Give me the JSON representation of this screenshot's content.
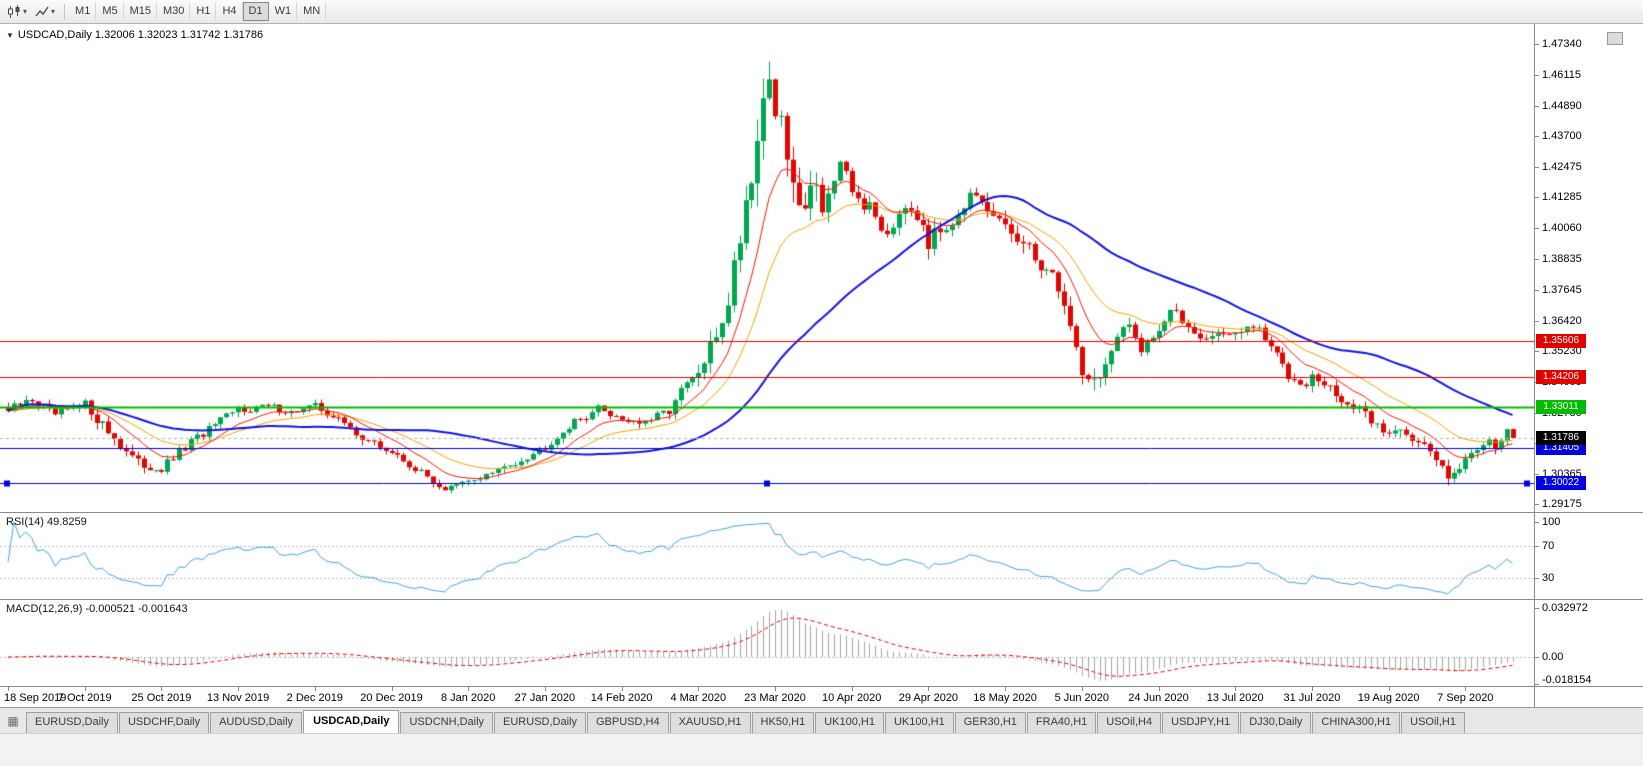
{
  "toolbar": {
    "caret": "▾",
    "timeframes": [
      {
        "label": "M1",
        "active": false
      },
      {
        "label": "M5",
        "active": false
      },
      {
        "label": "M15",
        "active": false
      },
      {
        "label": "M30",
        "active": false
      },
      {
        "label": "H1",
        "active": false
      },
      {
        "label": "H4",
        "active": false
      },
      {
        "label": "D1",
        "active": true
      },
      {
        "label": "W1",
        "active": false
      },
      {
        "label": "MN",
        "active": false
      }
    ]
  },
  "chart_header": {
    "menu_glyph": "▼",
    "title_text": "USDCAD,Daily 1.32006 1.32023 1.31742 1.31786",
    "symbol": "USDCAD",
    "period": "Daily",
    "open": "1.32006",
    "high": "1.32023",
    "low": "1.31742",
    "close": "1.31786"
  },
  "chart_data": {
    "type": "candlestick",
    "symbol": "USDCAD",
    "timeframe": "Daily",
    "bar_count": 256,
    "visible_price_top": 1.4813,
    "visible_price_bottom": 1.2886,
    "session_high": 1.4668,
    "session_low": 1.2951,
    "last_close": 1.31786,
    "up_color": "#00a651",
    "down_color": "#e10600",
    "y_axis_ticks": [
      "1.47340",
      "1.46115",
      "1.44890",
      "1.43700",
      "1.42475",
      "1.41285",
      "1.40060",
      "1.38835",
      "1.37645",
      "1.36420",
      "1.35230",
      "1.34005",
      "1.32780",
      "1.31590",
      "1.30365",
      "1.29175"
    ],
    "x_axis_labels": [
      {
        "i": 0,
        "t": "18 Sep 2019"
      },
      {
        "i": 13,
        "t": "7 Oct 2019"
      },
      {
        "i": 26,
        "t": "25 Oct 2019"
      },
      {
        "i": 39,
        "t": "13 Nov 2019"
      },
      {
        "i": 52,
        "t": "2 Dec 2019"
      },
      {
        "i": 65,
        "t": "20 Dec 2019"
      },
      {
        "i": 78,
        "t": "8 Jan 2020"
      },
      {
        "i": 91,
        "t": "27 Jan 2020"
      },
      {
        "i": 104,
        "t": "14 Feb 2020"
      },
      {
        "i": 117,
        "t": "4 Mar 2020"
      },
      {
        "i": 130,
        "t": "23 Mar 2020"
      },
      {
        "i": 143,
        "t": "10 Apr 2020"
      },
      {
        "i": 156,
        "t": "29 Apr 2020"
      },
      {
        "i": 169,
        "t": "18 May 2020"
      },
      {
        "i": 182,
        "t": "5 Jun 2020"
      },
      {
        "i": 195,
        "t": "24 Jun 2020"
      },
      {
        "i": 208,
        "t": "13 Jul 2020"
      },
      {
        "i": 221,
        "t": "31 Jul 2020"
      },
      {
        "i": 234,
        "t": "19 Aug 2020"
      },
      {
        "i": 247,
        "t": "7 Sep 2020"
      }
    ],
    "price_anchors": [
      [
        0,
        1.3285,
        0.004
      ],
      [
        4,
        1.333,
        0.004
      ],
      [
        8,
        1.327,
        0.004
      ],
      [
        13,
        1.331,
        0.0045
      ],
      [
        17,
        1.3205,
        0.005
      ],
      [
        22,
        1.3075,
        0.005
      ],
      [
        26,
        1.3055,
        0.004
      ],
      [
        31,
        1.316,
        0.004
      ],
      [
        35,
        1.323,
        0.0035
      ],
      [
        39,
        1.329,
        0.0035
      ],
      [
        44,
        1.3305,
        0.003
      ],
      [
        48,
        1.328,
        0.003
      ],
      [
        52,
        1.3305,
        0.003
      ],
      [
        56,
        1.325,
        0.0035
      ],
      [
        61,
        1.3165,
        0.0035
      ],
      [
        65,
        1.312,
        0.003
      ],
      [
        70,
        1.304,
        0.003
      ],
      [
        74,
        1.2975,
        0.003
      ],
      [
        78,
        1.3005,
        0.003
      ],
      [
        83,
        1.305,
        0.003
      ],
      [
        88,
        1.3105,
        0.003
      ],
      [
        91,
        1.3145,
        0.003
      ],
      [
        95,
        1.3225,
        0.0035
      ],
      [
        100,
        1.3295,
        0.0035
      ],
      [
        104,
        1.3255,
        0.0035
      ],
      [
        108,
        1.3235,
        0.0035
      ],
      [
        112,
        1.329,
        0.004
      ],
      [
        115,
        1.339,
        0.006
      ],
      [
        117,
        1.3425,
        0.007
      ],
      [
        120,
        1.358,
        0.009
      ],
      [
        122,
        1.373,
        0.011
      ],
      [
        124,
        1.399,
        0.014
      ],
      [
        126,
        1.424,
        0.016
      ],
      [
        128,
        1.451,
        0.018
      ],
      [
        129,
        1.463,
        0.019
      ],
      [
        130,
        1.448,
        0.019
      ],
      [
        132,
        1.429,
        0.016
      ],
      [
        134,
        1.406,
        0.014
      ],
      [
        136,
        1.421,
        0.012
      ],
      [
        138,
        1.411,
        0.011
      ],
      [
        141,
        1.423,
        0.01
      ],
      [
        143,
        1.415,
        0.009
      ],
      [
        146,
        1.408,
        0.008
      ],
      [
        149,
        1.399,
        0.008
      ],
      [
        152,
        1.412,
        0.008
      ],
      [
        155,
        1.404,
        0.0075
      ],
      [
        156,
        1.395,
        0.0075
      ],
      [
        159,
        1.402,
        0.007
      ],
      [
        163,
        1.413,
        0.007
      ],
      [
        166,
        1.406,
        0.007
      ],
      [
        169,
        1.402,
        0.0065
      ],
      [
        172,
        1.393,
        0.0075
      ],
      [
        175,
        1.387,
        0.008
      ],
      [
        178,
        1.378,
        0.008
      ],
      [
        180,
        1.362,
        0.009
      ],
      [
        182,
        1.345,
        0.009
      ],
      [
        184,
        1.34,
        0.008
      ],
      [
        186,
        1.347,
        0.007
      ],
      [
        188,
        1.356,
        0.0065
      ],
      [
        190,
        1.362,
        0.006
      ],
      [
        192,
        1.354,
        0.006
      ],
      [
        195,
        1.361,
        0.0055
      ],
      [
        197,
        1.368,
        0.005
      ],
      [
        200,
        1.362,
        0.005
      ],
      [
        203,
        1.357,
        0.005
      ],
      [
        206,
        1.36,
        0.005
      ],
      [
        208,
        1.358,
        0.005
      ],
      [
        211,
        1.362,
        0.005
      ],
      [
        214,
        1.354,
        0.005
      ],
      [
        217,
        1.343,
        0.005
      ],
      [
        220,
        1.34,
        0.0045
      ],
      [
        221,
        1.342,
        0.0045
      ],
      [
        224,
        1.337,
        0.0045
      ],
      [
        227,
        1.331,
        0.0045
      ],
      [
        230,
        1.327,
        0.0045
      ],
      [
        232,
        1.323,
        0.0045
      ],
      [
        234,
        1.319,
        0.0045
      ],
      [
        236,
        1.323,
        0.005
      ],
      [
        238,
        1.318,
        0.005
      ],
      [
        240,
        1.314,
        0.005
      ],
      [
        242,
        1.309,
        0.005
      ],
      [
        244,
        1.304,
        0.005
      ],
      [
        246,
        1.307,
        0.0045
      ],
      [
        247,
        1.309,
        0.004
      ],
      [
        249,
        1.314,
        0.004
      ],
      [
        251,
        1.318,
        0.004
      ],
      [
        252,
        1.315,
        0.004
      ],
      [
        253,
        1.3165,
        0.004
      ],
      [
        254,
        1.32,
        0.0035
      ],
      [
        255,
        1.31786,
        0.003
      ]
    ],
    "moving_averages": [
      {
        "name": "mid-ma",
        "period": 21,
        "method": "ema",
        "color": "#f0a400",
        "width": 1
      },
      {
        "name": "fast-ma",
        "period": 10,
        "method": "ema",
        "color": "#ff1400",
        "width": 1
      },
      {
        "name": "slow-ma",
        "period": 45,
        "method": "sma",
        "color": "#1414dc",
        "width": 2
      }
    ],
    "horizontal_levels": [
      {
        "value": 1.35606,
        "label": "1.35606",
        "color": "#e00000",
        "width": 1,
        "selected": false
      },
      {
        "value": 1.34206,
        "label": "1.34206",
        "color": "#e00000",
        "width": 1,
        "selected": false
      },
      {
        "value": 1.33011,
        "label": "1.33011",
        "color": "#00bb00",
        "width": 2,
        "selected": false
      },
      {
        "value": 1.31405,
        "label": "1.31405",
        "color": "#0000e1",
        "width": 1,
        "selected": false
      },
      {
        "value": 1.30022,
        "label": "1.30022",
        "color": "#0000e1",
        "width": 1,
        "selected": true
      }
    ],
    "current_price": {
      "value": 1.31786,
      "label": "1.31786",
      "tag_bg": "#000000",
      "line_color": "#b4b4b4"
    }
  },
  "rsi": {
    "label": "RSI(14) 49.8259",
    "period": 14,
    "current_value": "49.8259",
    "line_color": "#42a5dc",
    "level_lines": [
      70,
      30
    ],
    "scale_ticks": [
      {
        "label": "100",
        "value": 100
      },
      {
        "label": "70",
        "value": 70
      },
      {
        "label": "30",
        "value": 30
      }
    ]
  },
  "macd": {
    "label": "MACD(12,26,9) -0.000521 -0.001643",
    "fast": 12,
    "slow": 26,
    "signal": 9,
    "main_value": "-0.000521",
    "signal_value": "-0.001643",
    "histogram_color": "#a6a6a6",
    "signal_color": "#e00000",
    "scale_ticks": [
      {
        "label": "0.032972",
        "value": 0.032972
      },
      {
        "label": "0.00",
        "value": 0
      },
      {
        "label": "-0.018154",
        "value": -0.018154
      }
    ]
  },
  "tabbar": {
    "icon_glyph": "▦",
    "tabs": [
      {
        "label": "EURUSD,Daily",
        "active": false
      },
      {
        "label": "USDCHF,Daily",
        "active": false
      },
      {
        "label": "AUDUSD,Daily",
        "active": false
      },
      {
        "label": "USDCAD,Daily",
        "active": true
      },
      {
        "label": "USDCNH,Daily",
        "active": false
      },
      {
        "label": "EURUSD,Daily",
        "active": false
      },
      {
        "label": "GBPUSD,H4",
        "active": false
      },
      {
        "label": "XAUUSD,H1",
        "active": false
      },
      {
        "label": "HK50,H1",
        "active": false
      },
      {
        "label": "UK100,H1",
        "active": false
      },
      {
        "label": "UK100,H1",
        "active": false
      },
      {
        "label": "GER30,H1",
        "active": false
      },
      {
        "label": "FRA40,H1",
        "active": false
      },
      {
        "label": "USOil,H4",
        "active": false
      },
      {
        "label": "USDJPY,H1",
        "active": false
      },
      {
        "label": "DJ30,Daily",
        "active": false
      },
      {
        "label": "CHINA300,H1",
        "active": false
      },
      {
        "label": "USOil,H1",
        "active": false
      }
    ]
  }
}
